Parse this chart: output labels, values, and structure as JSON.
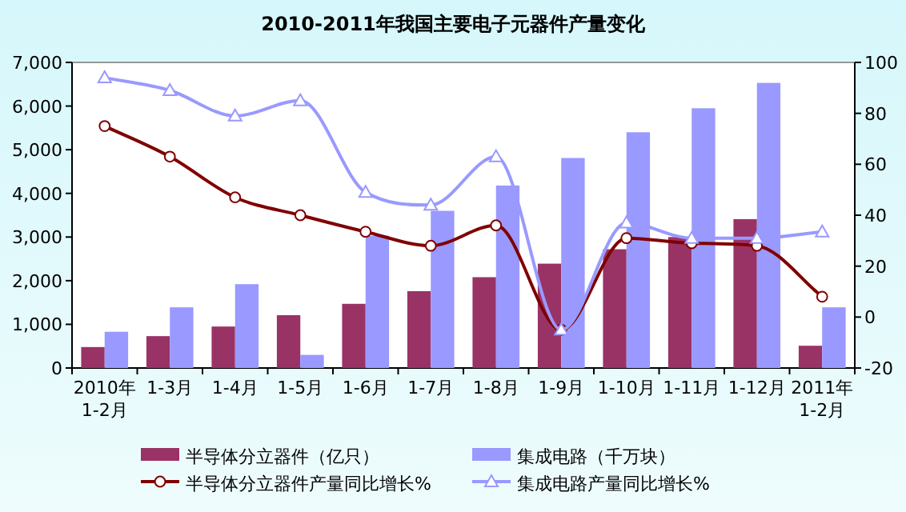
{
  "chart_data": {
    "type": "bar",
    "title": "2010-2011年我国主要电子元器件产量变化",
    "categories": [
      "2010年\n1-2月",
      "1-3月",
      "1-4月",
      "1-5月",
      "1-6月",
      "1-7月",
      "1-8月",
      "1-9月",
      "1-10月",
      "1-11月",
      "1-12月",
      "2011年\n1-2月"
    ],
    "series": [
      {
        "name": "半导体分立器件（亿只）",
        "color": "#993366",
        "values": [
          480,
          730,
          950,
          1210,
          1470,
          1760,
          2080,
          2390,
          2720,
          3000,
          3410,
          510
        ]
      },
      {
        "name": "集成电路（千万块）",
        "color": "#9999ff",
        "values": [
          830,
          1390,
          1920,
          300,
          3030,
          3600,
          4180,
          4810,
          5400,
          5950,
          6530,
          1390
        ]
      },
      {
        "name": "半导体分立器件产量同比增长%",
        "type": "line",
        "axis": "y2",
        "color": "#800000",
        "marker": "circle",
        "values": [
          75,
          63,
          47,
          40,
          33.5,
          28,
          36,
          -5,
          31,
          29,
          28,
          8
        ]
      },
      {
        "name": "集成电路产量同比增长%",
        "type": "line",
        "axis": "y2",
        "color": "#9999ff",
        "marker": "triangle",
        "values": [
          94,
          89,
          79,
          85,
          49,
          44,
          63,
          -5,
          37,
          31,
          31,
          33.5
        ]
      }
    ],
    "ylim": [
      0,
      7000
    ],
    "yticks": [
      0,
      {
        "value": 1000,
        "label": "1,000"
      },
      {
        "value": 2000,
        "label": "2,000"
      },
      {
        "value": 3000,
        "label": "3,000"
      },
      {
        "value": 4000,
        "label": "4,000"
      },
      {
        "value": 5000,
        "label": "5,000"
      },
      {
        "value": 6000,
        "label": "6,000"
      },
      {
        "value": 7000,
        "label": "7,000"
      }
    ],
    "y2lim": [
      -20,
      100
    ],
    "y2ticks": [
      -20,
      0,
      20,
      40,
      60,
      80,
      100
    ],
    "grid": false,
    "legend": "bottom"
  }
}
